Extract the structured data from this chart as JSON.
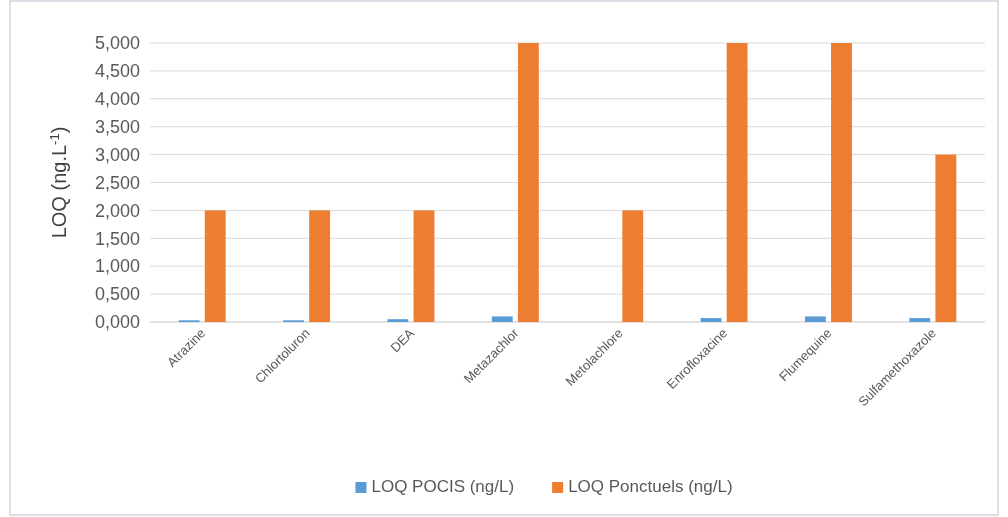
{
  "chart_data": {
    "type": "bar",
    "ylabel": "LOQ (ng.L$^{-1}$)",
    "categories": [
      "Atrazine",
      "Chlortoluron",
      "DEA",
      "Metazachlor",
      "Metolachlore",
      "Enrofloxacine",
      "Flumequine",
      "Sulfamethoxazole"
    ],
    "series": [
      {
        "name": "LOQ POCIS (ng/L)",
        "color": "#5b9bd5",
        "values": [
          0.03,
          0.03,
          0.05,
          0.1,
          null,
          0.07,
          0.1,
          0.07
        ]
      },
      {
        "name": "LOQ Ponctuels (ng/L)",
        "color": "#ed7d31",
        "values": [
          2,
          2,
          2,
          5,
          2,
          5,
          5,
          3
        ]
      }
    ],
    "ylim": [
      0,
      5
    ],
    "yticks": [
      {
        "value": 0,
        "label": "0,000"
      },
      {
        "value": 0.5,
        "label": "0,500"
      },
      {
        "value": 1,
        "label": "1,000"
      },
      {
        "value": 1.5,
        "label": "1,500"
      },
      {
        "value": 2,
        "label": "2,000"
      },
      {
        "value": 2.5,
        "label": "2,500"
      },
      {
        "value": 3,
        "label": "3,000"
      },
      {
        "value": 3.5,
        "label": "3,500"
      },
      {
        "value": 4,
        "label": "4,000"
      },
      {
        "value": 4.5,
        "label": "4,500"
      },
      {
        "value": 5,
        "label": "5,000"
      }
    ],
    "grid": "y",
    "legend": "bottom"
  }
}
